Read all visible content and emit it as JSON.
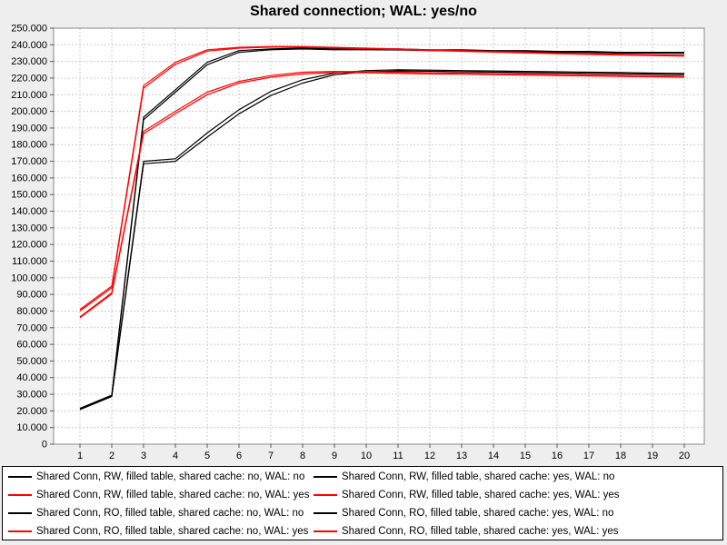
{
  "chart": {
    "title": "Shared connection; WAL: yes/no",
    "background_color": "#eeeeee",
    "plot_background_color": "#ffffff",
    "grid_color": "#cccccc",
    "axis_color": "#888888",
    "tick_label_color": "#000000",
    "legend_border_color": "#000000",
    "legend_background_color": "#ffffff"
  },
  "chart_data": {
    "type": "line",
    "title": "Shared connection; WAL: yes/no",
    "xlabel": "",
    "ylabel": "",
    "x": [
      1,
      2,
      3,
      4,
      5,
      6,
      7,
      8,
      9,
      10,
      11,
      12,
      13,
      14,
      15,
      16,
      17,
      18,
      19,
      20
    ],
    "x_ticks": [
      "1",
      "2",
      "3",
      "4",
      "5",
      "6",
      "7",
      "8",
      "9",
      "10",
      "11",
      "12",
      "13",
      "14",
      "15",
      "16",
      "17",
      "18",
      "19",
      "20"
    ],
    "y_ticks": [
      "0",
      "10.000",
      "20.000",
      "30.000",
      "40.000",
      "50.000",
      "60.000",
      "70.000",
      "80.000",
      "90.000",
      "100.000",
      "110.000",
      "120.000",
      "130.000",
      "140.000",
      "150.000",
      "160.000",
      "170.000",
      "180.000",
      "190.000",
      "200.000",
      "210.000",
      "220.000",
      "230.000",
      "240.000",
      "250.000"
    ],
    "ylim": [
      0,
      250000
    ],
    "y_tick_step": 10000,
    "grid": true,
    "grid_style": "dashed",
    "legend_position": "bottom",
    "legend_columns": 2,
    "series": [
      {
        "name": "Shared Conn, RW, filled table, shared cache: no, WAL: no",
        "color": "#000000",
        "values": [
          21500,
          29500,
          196500,
          213000,
          229500,
          236500,
          237500,
          238000,
          237500,
          237500,
          237500,
          237000,
          237000,
          236500,
          236500,
          236000,
          236000,
          235500,
          235500,
          235500
        ]
      },
      {
        "name": "Shared Conn, RW, filled table, shared cache: yes, WAL: no",
        "color": "#000000",
        "values": [
          21000,
          29000,
          195000,
          211500,
          228000,
          235500,
          237000,
          237500,
          237000,
          237000,
          236900,
          236500,
          236400,
          236000,
          235900,
          235500,
          235400,
          235000,
          235000,
          234800
        ]
      },
      {
        "name": "Shared Conn, RW, filled table, shared cache: no, WAL: yes",
        "color": "#ff0000",
        "values": [
          81000,
          95000,
          215500,
          229500,
          237000,
          238500,
          239000,
          239000,
          238500,
          238000,
          237500,
          237000,
          236500,
          236000,
          235500,
          235000,
          234700,
          234300,
          234000,
          233700
        ]
      },
      {
        "name": "Shared Conn, RW, filled table, shared cache: yes, WAL: yes",
        "color": "#ff0000",
        "values": [
          80000,
          94000,
          214000,
          228200,
          236200,
          238000,
          238600,
          238600,
          238100,
          237600,
          237100,
          236600,
          236100,
          235600,
          235100,
          234600,
          234200,
          233800,
          233500,
          233200
        ]
      },
      {
        "name": "Shared Conn, RO, filled table, shared cache: no, WAL: no",
        "color": "#000000",
        "values": [
          21300,
          29300,
          170000,
          171500,
          187000,
          201000,
          212000,
          219000,
          223000,
          224500,
          225000,
          224800,
          224500,
          224300,
          224000,
          223800,
          223500,
          223300,
          223000,
          222800
        ]
      },
      {
        "name": "Shared Conn, RO, filled table, shared cache: yes, WAL: no",
        "color": "#000000",
        "values": [
          20800,
          28600,
          168500,
          170000,
          184500,
          198500,
          209500,
          217000,
          222000,
          223800,
          224300,
          224100,
          223800,
          223600,
          223300,
          223100,
          222800,
          222600,
          222300,
          222100
        ]
      },
      {
        "name": "Shared Conn, RO, filled table, shared cache: no, WAL: yes",
        "color": "#ff0000",
        "values": [
          76500,
          91000,
          188000,
          200000,
          211500,
          218000,
          221500,
          223500,
          224000,
          223900,
          223500,
          223200,
          223000,
          222700,
          222500,
          222200,
          222000,
          221700,
          221500,
          221200
        ]
      },
      {
        "name": "Shared Conn, RO, filled table, shared cache: yes, WAL: yes",
        "color": "#ff0000",
        "values": [
          76000,
          90300,
          186500,
          198500,
          210000,
          217000,
          220500,
          222500,
          223300,
          223200,
          222800,
          222500,
          222300,
          222000,
          221800,
          221500,
          221300,
          221000,
          220800,
          220500
        ]
      }
    ]
  }
}
